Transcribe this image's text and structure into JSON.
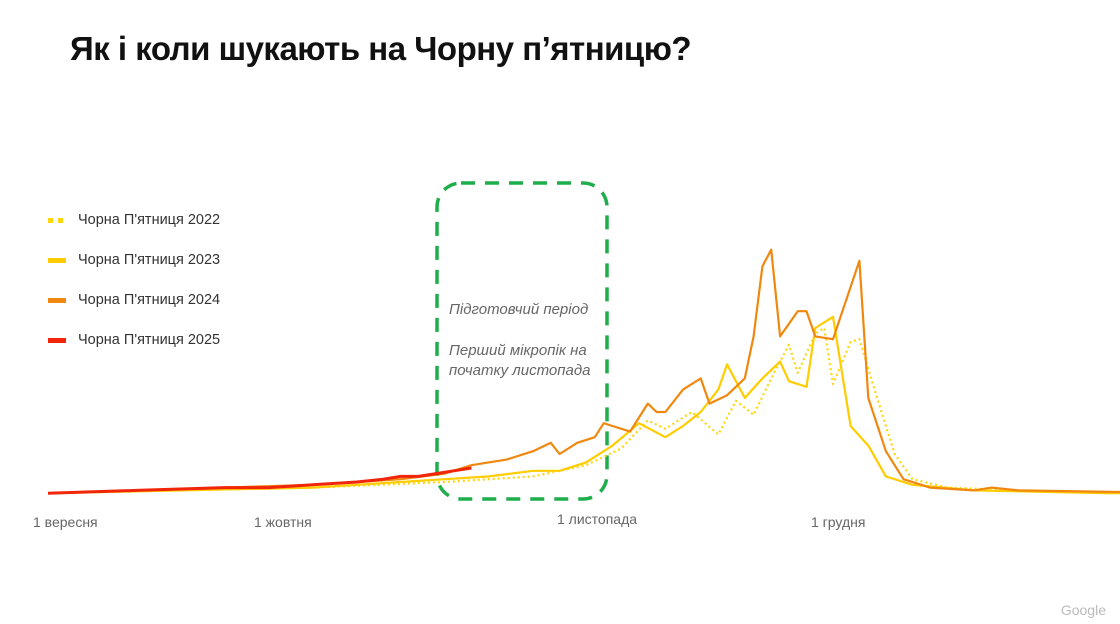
{
  "title": "Як і коли шукають на Чорну п’ятницю?",
  "legend": [
    {
      "label": "Чорна П'ятниця 2022",
      "color": "#FFD60A",
      "style": "dotted"
    },
    {
      "label": "Чорна П'ятниця 2023",
      "color": "#FFCC00",
      "style": "solid"
    },
    {
      "label": "Чорна П'ятниця 2024",
      "color": "#F0880F",
      "style": "solid"
    },
    {
      "label": "Чорна П'ятниця 2025",
      "color": "#F0250A",
      "style": "solid"
    }
  ],
  "annotation": {
    "line1": "Підготовчий період",
    "line2": "Перший мікропік на початку листопада",
    "box_color": "#1FAE4B"
  },
  "x_ticks": [
    "1 вересня",
    "1 жовтня",
    "1 листопада",
    "1 грудня"
  ],
  "brand": "Google",
  "chart_data": {
    "type": "line",
    "title": "Як і коли шукають на Чорну п’ятницю?",
    "xlabel": "",
    "ylabel": "",
    "x_ticks": [
      "1 вересня",
      "1 жовтня",
      "1 листопада",
      "1 грудня"
    ],
    "grid": false,
    "legend_position": "left",
    "y_scale": "relative search interest (0-100), unlabeled",
    "series": [
      {
        "name": "Чорна П'ятниця 2022",
        "style": "dotted",
        "points": [
          [
            0,
            1
          ],
          [
            15,
            2
          ],
          [
            30,
            3
          ],
          [
            45,
            5
          ],
          [
            55,
            7
          ],
          [
            61,
            11
          ],
          [
            65,
            17
          ],
          [
            68,
            27
          ],
          [
            70,
            24
          ],
          [
            73,
            30
          ],
          [
            76,
            22
          ],
          [
            78,
            34
          ],
          [
            80,
            29
          ],
          [
            82,
            42
          ],
          [
            84,
            54
          ],
          [
            85,
            44
          ],
          [
            87,
            58
          ],
          [
            88,
            60
          ],
          [
            89,
            40
          ],
          [
            91,
            55
          ],
          [
            92,
            56
          ],
          [
            94,
            35
          ],
          [
            96,
            15
          ],
          [
            98,
            6
          ],
          [
            102,
            3
          ],
          [
            110,
            2
          ],
          [
            120,
            1
          ],
          [
            150,
            1
          ]
        ]
      },
      {
        "name": "Чорна П'ятниця 2023",
        "style": "solid",
        "points": [
          [
            0,
            1
          ],
          [
            15,
            2
          ],
          [
            30,
            3
          ],
          [
            45,
            6
          ],
          [
            50,
            7
          ],
          [
            55,
            9
          ],
          [
            58,
            9
          ],
          [
            61,
            12
          ],
          [
            64,
            18
          ],
          [
            67,
            26
          ],
          [
            70,
            21
          ],
          [
            72,
            25
          ],
          [
            74,
            30
          ],
          [
            76,
            38
          ],
          [
            77,
            47
          ],
          [
            79,
            35
          ],
          [
            81,
            42
          ],
          [
            83,
            48
          ],
          [
            84,
            41
          ],
          [
            86,
            39
          ],
          [
            87,
            60
          ],
          [
            89,
            64
          ],
          [
            91,
            25
          ],
          [
            93,
            18
          ],
          [
            95,
            7
          ],
          [
            98,
            4
          ],
          [
            105,
            2
          ],
          [
            120,
            1
          ],
          [
            150,
            1
          ]
        ]
      },
      {
        "name": "Чорна П'ятниця 2024",
        "style": "solid",
        "points": [
          [
            0,
            1
          ],
          [
            10,
            2
          ],
          [
            20,
            3
          ],
          [
            30,
            4
          ],
          [
            40,
            6
          ],
          [
            45,
            8
          ],
          [
            48,
            11
          ],
          [
            52,
            13
          ],
          [
            55,
            16
          ],
          [
            57,
            19
          ],
          [
            58,
            15
          ],
          [
            60,
            19
          ],
          [
            62,
            21
          ],
          [
            63,
            26
          ],
          [
            64,
            25
          ],
          [
            66,
            23
          ],
          [
            68,
            33
          ],
          [
            69,
            30
          ],
          [
            70,
            30
          ],
          [
            72,
            38
          ],
          [
            74,
            42
          ],
          [
            75,
            33
          ],
          [
            77,
            36
          ],
          [
            79,
            42
          ],
          [
            80,
            57
          ],
          [
            81,
            82
          ],
          [
            82,
            88
          ],
          [
            83,
            57
          ],
          [
            85,
            66
          ],
          [
            86,
            66
          ],
          [
            87,
            57
          ],
          [
            89,
            56
          ],
          [
            92,
            84
          ],
          [
            93,
            35
          ],
          [
            95,
            16
          ],
          [
            97,
            6
          ],
          [
            100,
            3
          ],
          [
            105,
            2
          ],
          [
            107,
            3
          ],
          [
            110,
            2
          ],
          [
            130,
            1
          ],
          [
            150,
            1
          ]
        ]
      },
      {
        "name": "Чорна П'ятниця 2025",
        "style": "solid",
        "points": [
          [
            0,
            1
          ],
          [
            10,
            2
          ],
          [
            20,
            3
          ],
          [
            25,
            3
          ],
          [
            30,
            4
          ],
          [
            35,
            5
          ],
          [
            38,
            6
          ],
          [
            40,
            7
          ],
          [
            42,
            7
          ],
          [
            44,
            8
          ],
          [
            46,
            9
          ],
          [
            48,
            10
          ]
        ]
      }
    ]
  }
}
